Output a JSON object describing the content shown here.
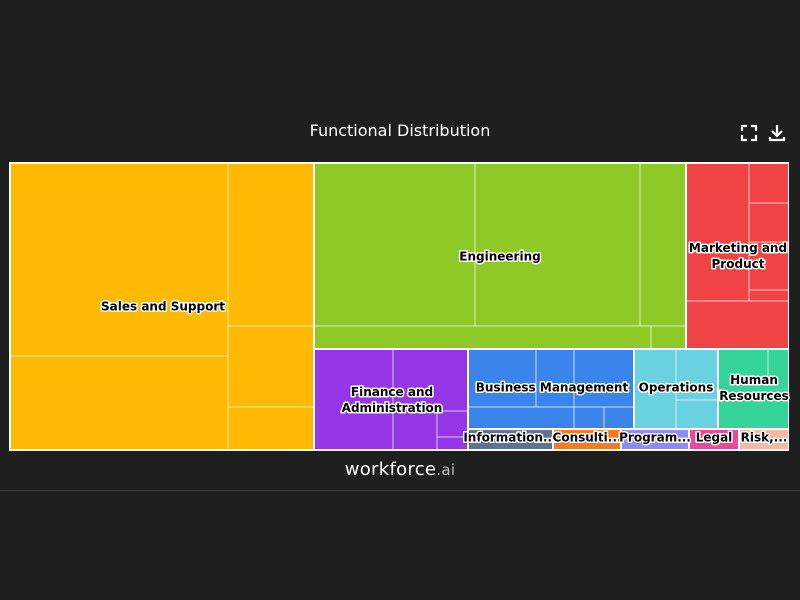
{
  "chart_data": {
    "type": "treemap",
    "title": "Functional Distribution",
    "categories": [
      {
        "name": "Sales and Support",
        "value": 26.3,
        "color": "#ffb900"
      },
      {
        "name": "Engineering",
        "value": 19.6,
        "color": "#8ec927"
      },
      {
        "name": "Marketing and Product",
        "value": 5.3,
        "color": "#ef4345"
      },
      {
        "name": "Finance and Administration",
        "value": 7.0,
        "color": "#9337e7"
      },
      {
        "name": "Business Management",
        "value": 5.9,
        "color": "#3b84ec"
      },
      {
        "name": "Operations",
        "value": 3.0,
        "color": "#6ad1e0"
      },
      {
        "name": "Human Resources",
        "value": 2.6,
        "color": "#36d39a"
      },
      {
        "name": "Information...",
        "value": 1.1,
        "color": "#5d7390"
      },
      {
        "name": "Consulti...",
        "value": 0.9,
        "color": "#f47c20"
      },
      {
        "name": "Program...",
        "value": 0.9,
        "color": "#8d8cf7"
      },
      {
        "name": "Legal",
        "value": 0.6,
        "color": "#e94a99"
      },
      {
        "name": "Risk,...",
        "value": 0.5,
        "color": "#f7b7a8"
      }
    ]
  },
  "toolbar": {
    "fullscreen_icon": "fullscreen-icon",
    "download_icon": "download-icon"
  },
  "brand": {
    "name": "workforce",
    "suffix": ".ai"
  }
}
